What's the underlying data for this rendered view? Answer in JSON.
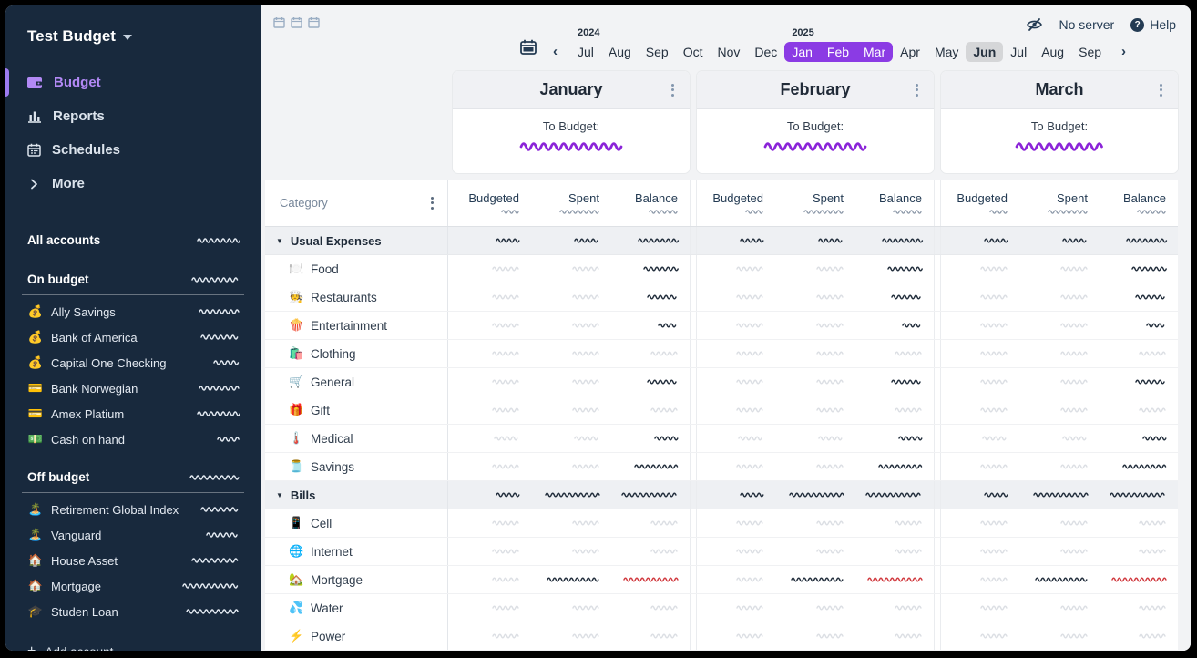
{
  "colors": {
    "sidebar_bg": "#18293D",
    "main_bg": "#F2F3F5",
    "navy": "#243B53",
    "accent_purple_text": "#B289F5",
    "accent_bar": "#9D7BF0",
    "selected_purple": "#8B3BE4",
    "current_bg": "#D5D6D8",
    "mask_dark": "#232F3D",
    "mask_faint": "#DCDFE4",
    "mask_red": "#D13B40",
    "mask_purple": "#8B24D8",
    "mask_white": "#E2E9F1",
    "mask_muted": "#8D99A9"
  },
  "sidebar": {
    "title": "Test Budget",
    "nav": [
      {
        "label": "Budget",
        "icon": "wallet-icon",
        "active": true
      },
      {
        "label": "Reports",
        "icon": "bar-chart-icon",
        "active": false
      },
      {
        "label": "Schedules",
        "icon": "calendar-icon",
        "active": false
      },
      {
        "label": "More",
        "icon": "chevron-right-icon",
        "active": false
      }
    ],
    "all_accounts": {
      "label": "All accounts",
      "mask_w": 46
    },
    "sections": [
      {
        "label": "On budget",
        "mask_w": 52,
        "accounts": [
          {
            "icon": "💰",
            "icon_name": "moneybag-icon",
            "label": "Ally Savings",
            "mask_w": 44
          },
          {
            "icon": "💰",
            "icon_name": "moneybag-icon",
            "label": "Bank of America",
            "mask_w": 42
          },
          {
            "icon": "💰",
            "icon_name": "moneybag-icon",
            "label": "Capital One Checking",
            "mask_w": 28
          },
          {
            "icon": "💳",
            "icon_name": "credit-card-icon",
            "label": "Bank Norwegian",
            "mask_w": 44
          },
          {
            "icon": "💳",
            "icon_name": "credit-card-icon",
            "label": "Amex Platium",
            "mask_w": 46
          },
          {
            "icon": "💵",
            "icon_name": "banknote-icon",
            "label": "Cash on hand",
            "mask_w": 24
          }
        ]
      },
      {
        "label": "Off budget",
        "mask_w": 54,
        "accounts": [
          {
            "icon": "🏝️",
            "icon_name": "island-icon",
            "label": "Retirement Global Index",
            "mask_w": 42
          },
          {
            "icon": "🏝️",
            "icon_name": "island-icon",
            "label": "Vanguard",
            "mask_w": 36
          },
          {
            "icon": "🏠",
            "icon_name": "house-icon",
            "label": "House Asset",
            "mask_w": 52
          },
          {
            "icon": "🏠",
            "icon_name": "house-icon",
            "label": "Mortgage",
            "mask_w": 62
          },
          {
            "icon": "🎓",
            "icon_name": "graduation-cap-icon",
            "label": "Studen Loan",
            "mask_w": 58
          }
        ]
      }
    ],
    "add_account_label": "Add account"
  },
  "topbar": {
    "server_status": "No server",
    "help_label": "Help"
  },
  "month_nav": {
    "months": [
      {
        "label": "Jul",
        "year": "2024"
      },
      {
        "label": "Aug"
      },
      {
        "label": "Sep"
      },
      {
        "label": "Oct"
      },
      {
        "label": "Nov"
      },
      {
        "label": "Dec"
      },
      {
        "label": "Jan",
        "year": "2025",
        "selected": true
      },
      {
        "label": "Feb",
        "selected": true
      },
      {
        "label": "Mar",
        "selected": true
      },
      {
        "label": "Apr"
      },
      {
        "label": "May"
      },
      {
        "label": "Jun",
        "current": true
      },
      {
        "label": "Jul"
      },
      {
        "label": "Aug"
      },
      {
        "label": "Sep"
      }
    ]
  },
  "budget_months": [
    {
      "name": "January",
      "to_budget_label": "To Budget:",
      "mask_w": 112
    },
    {
      "name": "February",
      "to_budget_label": "To Budget:",
      "mask_w": 112
    },
    {
      "name": "March",
      "to_budget_label": "To Budget:",
      "mask_w": 96
    }
  ],
  "table": {
    "category_header": "Category",
    "columns": [
      "Budgeted",
      "Spent",
      "Balance"
    ],
    "column_total_masks": [
      20,
      44,
      32
    ],
    "rows": [
      {
        "group": true,
        "label": "Usual Expenses",
        "cells": {
          "b": [
            26,
            "dark"
          ],
          "s": [
            28,
            "dark"
          ],
          "bal": [
            44,
            "dark"
          ]
        }
      },
      {
        "icon": "🍽️",
        "label": "Food",
        "cells": {
          "b": [
            30,
            "faint"
          ],
          "s": [
            30,
            "faint"
          ],
          "bal": [
            38,
            "dark"
          ]
        }
      },
      {
        "icon": "🧑‍🍳",
        "label": "Restaurants",
        "cells": {
          "b": [
            30,
            "faint"
          ],
          "s": [
            30,
            "faint"
          ],
          "bal": [
            34,
            "dark"
          ]
        }
      },
      {
        "icon": "🍿",
        "label": "Entertainment",
        "cells": {
          "b": [
            30,
            "faint"
          ],
          "s": [
            30,
            "faint"
          ],
          "bal": [
            22,
            "dark"
          ]
        }
      },
      {
        "icon": "🛍️",
        "label": "Clothing",
        "cells": {
          "b": [
            30,
            "faint"
          ],
          "s": [
            30,
            "faint"
          ],
          "bal": [
            30,
            "faint"
          ]
        }
      },
      {
        "icon": "🛒",
        "label": "General",
        "cells": {
          "b": [
            30,
            "faint"
          ],
          "s": [
            30,
            "faint"
          ],
          "bal": [
            34,
            "dark"
          ]
        }
      },
      {
        "icon": "🎁",
        "label": "Gift",
        "cells": {
          "b": [
            30,
            "faint"
          ],
          "s": [
            30,
            "faint"
          ],
          "bal": [
            30,
            "faint"
          ]
        }
      },
      {
        "icon": "🌡️",
        "label": "Medical",
        "cells": {
          "b": [
            28,
            "faint"
          ],
          "s": [
            28,
            "faint"
          ],
          "bal": [
            26,
            "dark"
          ]
        }
      },
      {
        "icon": "🫙",
        "label": "Savings",
        "cells": {
          "b": [
            30,
            "faint"
          ],
          "s": [
            30,
            "faint"
          ],
          "bal": [
            48,
            "dark"
          ]
        }
      },
      {
        "group": true,
        "label": "Bills",
        "cells": {
          "b": [
            26,
            "dark"
          ],
          "s": [
            60,
            "dark"
          ],
          "bal": [
            62,
            "dark"
          ]
        }
      },
      {
        "icon": "📱",
        "label": "Cell",
        "cells": {
          "b": [
            30,
            "faint"
          ],
          "s": [
            30,
            "faint"
          ],
          "bal": [
            30,
            "faint"
          ]
        }
      },
      {
        "icon": "🌐",
        "label": "Internet",
        "cells": {
          "b": [
            30,
            "faint"
          ],
          "s": [
            30,
            "faint"
          ],
          "bal": [
            30,
            "faint"
          ]
        }
      },
      {
        "icon": "🏡",
        "label": "Mortgage",
        "cells": {
          "b": [
            30,
            "faint"
          ],
          "s": [
            58,
            "dark"
          ],
          "bal": [
            60,
            "red"
          ]
        }
      },
      {
        "icon": "💦",
        "label": "Water",
        "cells": {
          "b": [
            30,
            "faint"
          ],
          "s": [
            30,
            "faint"
          ],
          "bal": [
            30,
            "faint"
          ]
        }
      },
      {
        "icon": "⚡",
        "label": "Power",
        "cells": {
          "b": [
            30,
            "faint"
          ],
          "s": [
            30,
            "faint"
          ],
          "bal": [
            30,
            "faint"
          ]
        }
      }
    ]
  }
}
